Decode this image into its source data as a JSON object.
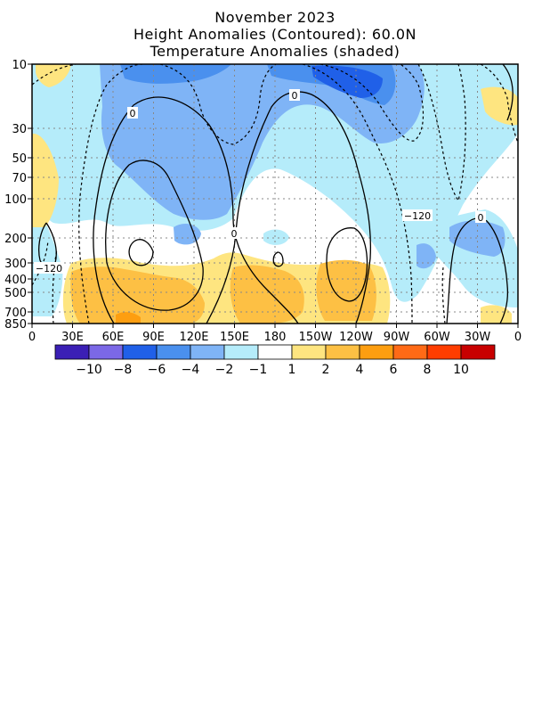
{
  "header": {
    "title": "November 2023",
    "subtitle1": "Height Anomalies (Contoured): 60.0N",
    "subtitle2": "Temperature Anomalies (shaded)"
  },
  "chart_data": {
    "type": "heatmap",
    "title": "November 2023",
    "subtitle": "Height Anomalies (Contoured): 60.0N / Temperature Anomalies (shaded)",
    "xlabel": "",
    "ylabel": "",
    "x_ticks": [
      "0",
      "30E",
      "60E",
      "90E",
      "120E",
      "150E",
      "180",
      "150W",
      "120W",
      "90W",
      "60W",
      "30W",
      "0"
    ],
    "x_tick_lon": [
      0,
      30,
      60,
      90,
      120,
      150,
      180,
      210,
      240,
      270,
      300,
      330,
      360
    ],
    "y_ticks": [
      "10",
      "30",
      "50",
      "70",
      "100",
      "200",
      "300",
      "400",
      "500",
      "700",
      "850"
    ],
    "y_tick_hpa": [
      10,
      30,
      50,
      70,
      100,
      200,
      300,
      400,
      500,
      700,
      850
    ],
    "y_scale": "log (pressure, hPa)",
    "xlim": [
      0,
      360
    ],
    "ylim": [
      850,
      10
    ],
    "grid": true,
    "contour_labels": [
      "0",
      "0",
      "0",
      "0",
      "-120",
      "-120"
    ],
    "colorbar": {
      "labels": [
        "-10",
        "-8",
        "-6",
        "-4",
        "-2",
        "-1",
        "1",
        "2",
        "4",
        "6",
        "8",
        "10"
      ],
      "colors": [
        "#3b1fb5",
        "#7b68e6",
        "#2060e8",
        "#4a90ee",
        "#7fb4f6",
        "#b5ecfa",
        "#ffffff",
        "#fee580",
        "#fdc044",
        "#fd9e10",
        "#ff6a16",
        "#ff3d00",
        "#c80000"
      ]
    },
    "regions": [
      {
        "level": "-2",
        "lon_range": [
          0,
          360
        ],
        "p_range": [
          10,
          300
        ]
      },
      {
        "level": "-4",
        "lon_range": [
          45,
          300
        ],
        "p_range": [
          10,
          200
        ]
      },
      {
        "level": "-6",
        "lon_range": [
          215,
          300
        ],
        "p_range": [
          10,
          70
        ]
      },
      {
        "level": "2",
        "lon_range": [
          50,
          270
        ],
        "p_range": [
          300,
          850
        ]
      },
      {
        "level": "4",
        "lon_range": [
          50,
          260
        ],
        "p_range": [
          350,
          850
        ]
      },
      {
        "level": "2",
        "lon_range": [
          0,
          20
        ],
        "p_range": [
          30,
          200
        ]
      },
      {
        "level": "2",
        "lon_range": [
          330,
          360
        ],
        "p_range": [
          10,
          50
        ]
      }
    ]
  }
}
